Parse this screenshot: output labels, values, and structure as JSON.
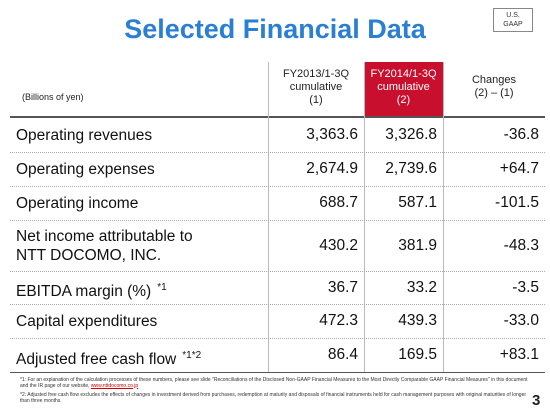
{
  "header": {
    "title": "Selected Financial Data",
    "badge_line1": "U.S.",
    "badge_line2": "GAAP",
    "unit": "(Billions of yen)"
  },
  "table": {
    "columns": [
      {
        "lines": [
          "FY2013/1-3Q",
          "cumulative",
          "(1)"
        ]
      },
      {
        "lines": [
          "FY2014/1-3Q",
          "cumulative",
          "(2)"
        ]
      },
      {
        "lines": [
          "Changes",
          "(2) – (1)"
        ]
      }
    ],
    "rows": [
      {
        "label": [
          "Operating revenues"
        ],
        "note": null,
        "cells": [
          "3,363.6",
          "3,326.8",
          "-36.8"
        ]
      },
      {
        "label": [
          "Operating expenses"
        ],
        "note": null,
        "cells": [
          "2,674.9",
          "2,739.6",
          "+64.7"
        ]
      },
      {
        "label": [
          "Operating income"
        ],
        "note": null,
        "cells": [
          "688.7",
          "587.1",
          "-101.5"
        ]
      },
      {
        "label": [
          "Net income attributable to",
          "NTT DOCOMO, INC."
        ],
        "note": null,
        "cells": [
          "430.2",
          "381.9",
          "-48.3"
        ]
      },
      {
        "label": [
          "EBITDA margin (%)"
        ],
        "note": "*1",
        "cells": [
          "36.7",
          "33.2",
          "-3.5"
        ]
      },
      {
        "label": [
          "Capital expenditures"
        ],
        "note": null,
        "cells": [
          "472.3",
          "439.3",
          "-33.0"
        ]
      },
      {
        "label": [
          "Adjusted free cash flow"
        ],
        "note": "*1*2",
        "cells": [
          "86.4",
          "169.5",
          "+83.1"
        ]
      }
    ]
  },
  "footnotes": [
    {
      "text": "*1: For an explanation of the calculation processes of these numbers, please see slide \"Reconciliations of the Disclosed Non-GAAP Financial Measures to the Most Directly Comparable GAAP Financial Measures\" in this document and the IR page of our website, ",
      "link": "www.nttdocomo.co.jp"
    },
    {
      "text": "*2: Adjusted free cash flow excludes the effects of changes in investment derived from purchases, redemption at maturity and disposals of financial instruments held for cash management purposes with original maturities of longer than three months.",
      "link": null
    }
  ],
  "page_number": "3"
}
